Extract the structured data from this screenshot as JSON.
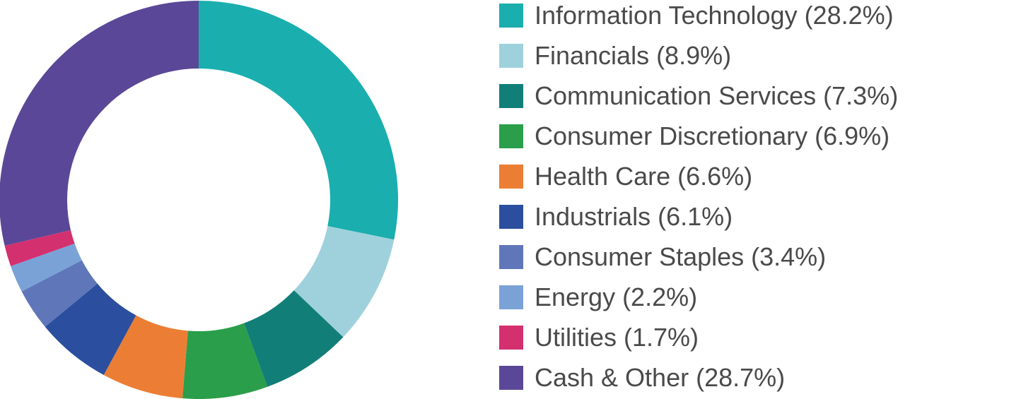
{
  "chart_data": {
    "type": "pie",
    "donut": true,
    "title": "",
    "legend_position": "right",
    "slices": [
      {
        "label": "Information Technology (28.2%)",
        "name": "Information Technology",
        "value": 28.2,
        "color": "#1aaeae"
      },
      {
        "label": "Financials (8.9%)",
        "name": "Financials",
        "value": 8.9,
        "color": "#9fd1dc"
      },
      {
        "label": "Communication Services (7.3%)",
        "name": "Communication Services",
        "value": 7.3,
        "color": "#127e78"
      },
      {
        "label": "Consumer Discretionary (6.9%)",
        "name": "Consumer Discretionary",
        "value": 6.9,
        "color": "#2a9e4a"
      },
      {
        "label": "Health Care (6.6%)",
        "name": "Health Care",
        "value": 6.6,
        "color": "#eb7e34"
      },
      {
        "label": "Industrials (6.1%)",
        "name": "Industrials",
        "value": 6.1,
        "color": "#2b4f9e"
      },
      {
        "label": "Consumer Staples (3.4%)",
        "name": "Consumer Staples",
        "value": 3.4,
        "color": "#5f77b9"
      },
      {
        "label": "Energy (2.2%)",
        "name": "Energy",
        "value": 2.2,
        "color": "#7aa2d6"
      },
      {
        "label": "Utilities (1.7%)",
        "name": "Utilities",
        "value": 1.7,
        "color": "#d3306f"
      },
      {
        "label": "Cash & Other (28.7%)",
        "name": "Cash & Other",
        "value": 28.7,
        "color": "#5b4797"
      }
    ]
  }
}
